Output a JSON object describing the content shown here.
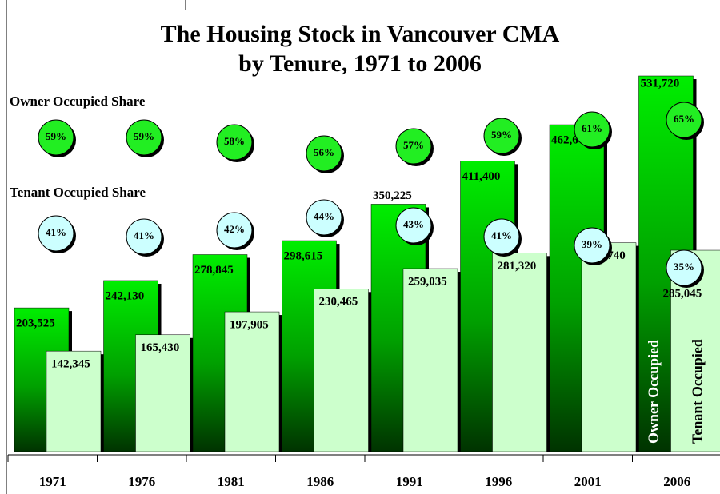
{
  "chart_data": {
    "type": "bar",
    "title": "The Housing Stock in Vancouver CMA",
    "subtitle": "by Tenure, 1971 to 2006",
    "annotations": [
      "Owner Occupied Share",
      "Tenant Occupied Share"
    ],
    "categories": [
      "1971",
      "1976",
      "1981",
      "1986",
      "1991",
      "1996",
      "2001",
      "2006"
    ],
    "series": [
      {
        "name": "Owner Occupied",
        "color": "#00ee00",
        "values": [
          203525,
          242130,
          278845,
          298615,
          350225,
          411400,
          462645,
          531720
        ],
        "value_labels": [
          "203,525",
          "242,130",
          "278,845",
          "298,615",
          "350,225",
          "411,400",
          "462,645",
          "531,720"
        ],
        "share": [
          59,
          59,
          58,
          56,
          57,
          59,
          61,
          65
        ],
        "share_labels": [
          "59%",
          "59%",
          "58%",
          "56%",
          "57%",
          "59%",
          "61%",
          "65%"
        ],
        "share_color": "#22ee22"
      },
      {
        "name": "Tenant Occupied",
        "color": "#ccffcc",
        "values": [
          142345,
          165430,
          197905,
          230465,
          259035,
          281320,
          295740,
          285045
        ],
        "value_labels": [
          "142,345",
          "165,430",
          "197,905",
          "230,465",
          "259,035",
          "281,320",
          "295,740",
          "285,045"
        ],
        "share": [
          41,
          41,
          42,
          44,
          43,
          41,
          39,
          35
        ],
        "share_labels": [
          "41%",
          "41%",
          "42%",
          "44%",
          "43%",
          "41%",
          "39%",
          "35%"
        ],
        "share_color": "#ccffff"
      }
    ]
  }
}
